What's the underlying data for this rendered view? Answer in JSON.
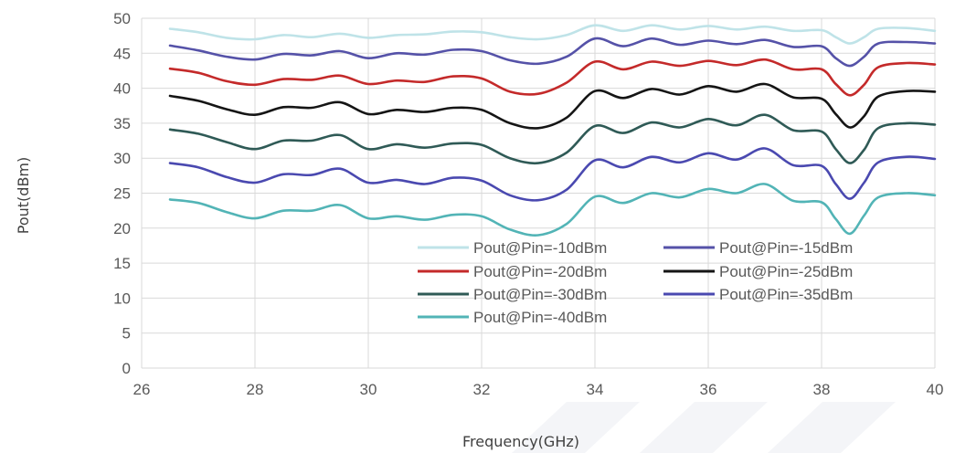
{
  "chart_data": {
    "type": "line",
    "xlabel": "Frequency(GHz)",
    "ylabel": "Pout(dBm)",
    "xlim": [
      26,
      40
    ],
    "ylim": [
      0,
      50
    ],
    "x_ticks": [
      "26",
      "28",
      "30",
      "32",
      "34",
      "36",
      "38",
      "40"
    ],
    "y_ticks": [
      "0",
      "5",
      "10",
      "15",
      "20",
      "25",
      "30",
      "35",
      "40",
      "45",
      "50"
    ],
    "grid": true,
    "legend_position": "lower-right",
    "series": [
      {
        "name": "Pout@Pin=-10dBm",
        "color": "#bfe3e8",
        "x": [
          26.5,
          27,
          27.5,
          28,
          28.5,
          29,
          29.5,
          30,
          30.5,
          31,
          31.5,
          32,
          32.5,
          33,
          33.5,
          34,
          34.5,
          35,
          35.5,
          36,
          36.5,
          37,
          37.5,
          38,
          38.25,
          38.5,
          38.75,
          39,
          39.5,
          40
        ],
        "y": [
          48.5,
          48,
          47.2,
          47.0,
          47.6,
          47.3,
          47.8,
          47.2,
          47.6,
          47.7,
          48.1,
          48.0,
          47.3,
          47.0,
          47.6,
          49.0,
          48.2,
          49.0,
          48.4,
          48.9,
          48.4,
          48.8,
          48.2,
          48.3,
          47.3,
          46.4,
          47.3,
          48.5,
          48.6,
          48.2
        ]
      },
      {
        "name": "Pout@Pin=-15dBm",
        "color": "#5552a8",
        "x": [
          26.5,
          27,
          27.5,
          28,
          28.5,
          29,
          29.5,
          30,
          30.5,
          31,
          31.5,
          32,
          32.5,
          33,
          33.5,
          34,
          34.5,
          35,
          35.5,
          36,
          36.5,
          37,
          37.5,
          38,
          38.25,
          38.5,
          38.75,
          39,
          39.5,
          40
        ],
        "y": [
          46.1,
          45.4,
          44.5,
          44.1,
          44.9,
          44.7,
          45.3,
          44.3,
          45.0,
          44.8,
          45.5,
          45.3,
          44.0,
          43.5,
          44.5,
          47.1,
          46.0,
          47.1,
          46.2,
          46.8,
          46.3,
          46.9,
          45.9,
          46.0,
          44.3,
          43.2,
          44.5,
          46.4,
          46.6,
          46.4
        ]
      },
      {
        "name": "Pout@Pin=-20dBm",
        "color": "#c42a2a",
        "x": [
          26.5,
          27,
          27.5,
          28,
          28.5,
          29,
          29.5,
          30,
          30.5,
          31,
          31.5,
          32,
          32.5,
          33,
          33.5,
          34,
          34.5,
          35,
          35.5,
          36,
          36.5,
          37,
          37.5,
          38,
          38.25,
          38.5,
          38.75,
          39,
          39.5,
          40
        ],
        "y": [
          42.8,
          42.2,
          41.0,
          40.5,
          41.3,
          41.2,
          41.8,
          40.6,
          41.1,
          40.9,
          41.7,
          41.4,
          39.5,
          39.2,
          40.8,
          43.8,
          42.7,
          43.8,
          43.2,
          43.9,
          43.3,
          44.1,
          42.7,
          42.7,
          40.6,
          39.0,
          40.5,
          43.0,
          43.6,
          43.4
        ]
      },
      {
        "name": "Pout@Pin=-25dBm",
        "color": "#151515",
        "x": [
          26.5,
          27,
          27.5,
          28,
          28.5,
          29,
          29.5,
          30,
          30.5,
          31,
          31.5,
          32,
          32.5,
          33,
          33.5,
          34,
          34.5,
          35,
          35.5,
          36,
          36.5,
          37,
          37.5,
          38,
          38.25,
          38.5,
          38.75,
          39,
          39.5,
          40
        ],
        "y": [
          38.9,
          38.2,
          37.0,
          36.2,
          37.3,
          37.2,
          38.0,
          36.3,
          36.9,
          36.6,
          37.2,
          36.9,
          35.0,
          34.3,
          35.8,
          39.6,
          38.6,
          39.9,
          39.1,
          40.3,
          39.5,
          40.6,
          38.7,
          38.5,
          36.3,
          34.4,
          36.0,
          38.8,
          39.6,
          39.5
        ]
      },
      {
        "name": "Pout@Pin=-30dBm",
        "color": "#2f5a56",
        "x": [
          26.5,
          27,
          27.5,
          28,
          28.5,
          29,
          29.5,
          30,
          30.5,
          31,
          31.5,
          32,
          32.5,
          33,
          33.5,
          34,
          34.5,
          35,
          35.5,
          36,
          36.5,
          37,
          37.5,
          38,
          38.25,
          38.5,
          38.75,
          39,
          39.5,
          40
        ],
        "y": [
          34.1,
          33.5,
          32.3,
          31.3,
          32.5,
          32.5,
          33.3,
          31.3,
          32.0,
          31.5,
          32.1,
          31.9,
          30.0,
          29.3,
          30.8,
          34.6,
          33.6,
          35.1,
          34.4,
          35.6,
          34.7,
          36.2,
          34.0,
          33.8,
          31.3,
          29.3,
          31.2,
          34.3,
          35.0,
          34.8
        ]
      },
      {
        "name": "Pout@Pin=-35dBm",
        "color": "#4a49b0",
        "x": [
          26.5,
          27,
          27.5,
          28,
          28.5,
          29,
          29.5,
          30,
          30.5,
          31,
          31.5,
          32,
          32.5,
          33,
          33.5,
          34,
          34.5,
          35,
          35.5,
          36,
          36.5,
          37,
          37.5,
          38,
          38.25,
          38.5,
          38.75,
          39,
          39.5,
          40
        ],
        "y": [
          29.3,
          28.7,
          27.3,
          26.5,
          27.7,
          27.6,
          28.5,
          26.5,
          26.9,
          26.3,
          27.2,
          26.8,
          24.7,
          24.0,
          25.5,
          29.7,
          28.7,
          30.2,
          29.4,
          30.7,
          29.8,
          31.4,
          29.0,
          28.9,
          26.3,
          24.2,
          26.5,
          29.4,
          30.2,
          29.9
        ]
      },
      {
        "name": "Pout@Pin=-40dBm",
        "color": "#52b4b6",
        "x": [
          26.5,
          27,
          27.5,
          28,
          28.5,
          29,
          29.5,
          30,
          30.5,
          31,
          31.5,
          32,
          32.5,
          33,
          33.5,
          34,
          34.5,
          35,
          35.5,
          36,
          36.5,
          37,
          37.5,
          38,
          38.25,
          38.5,
          38.75,
          39,
          39.5,
          40
        ],
        "y": [
          24.1,
          23.6,
          22.3,
          21.4,
          22.5,
          22.5,
          23.3,
          21.4,
          21.7,
          21.2,
          21.9,
          21.7,
          19.8,
          19.0,
          20.6,
          24.5,
          23.6,
          25.0,
          24.4,
          25.6,
          25.0,
          26.3,
          23.9,
          23.7,
          21.3,
          19.2,
          21.8,
          24.4,
          25.0,
          24.7
        ]
      }
    ]
  }
}
